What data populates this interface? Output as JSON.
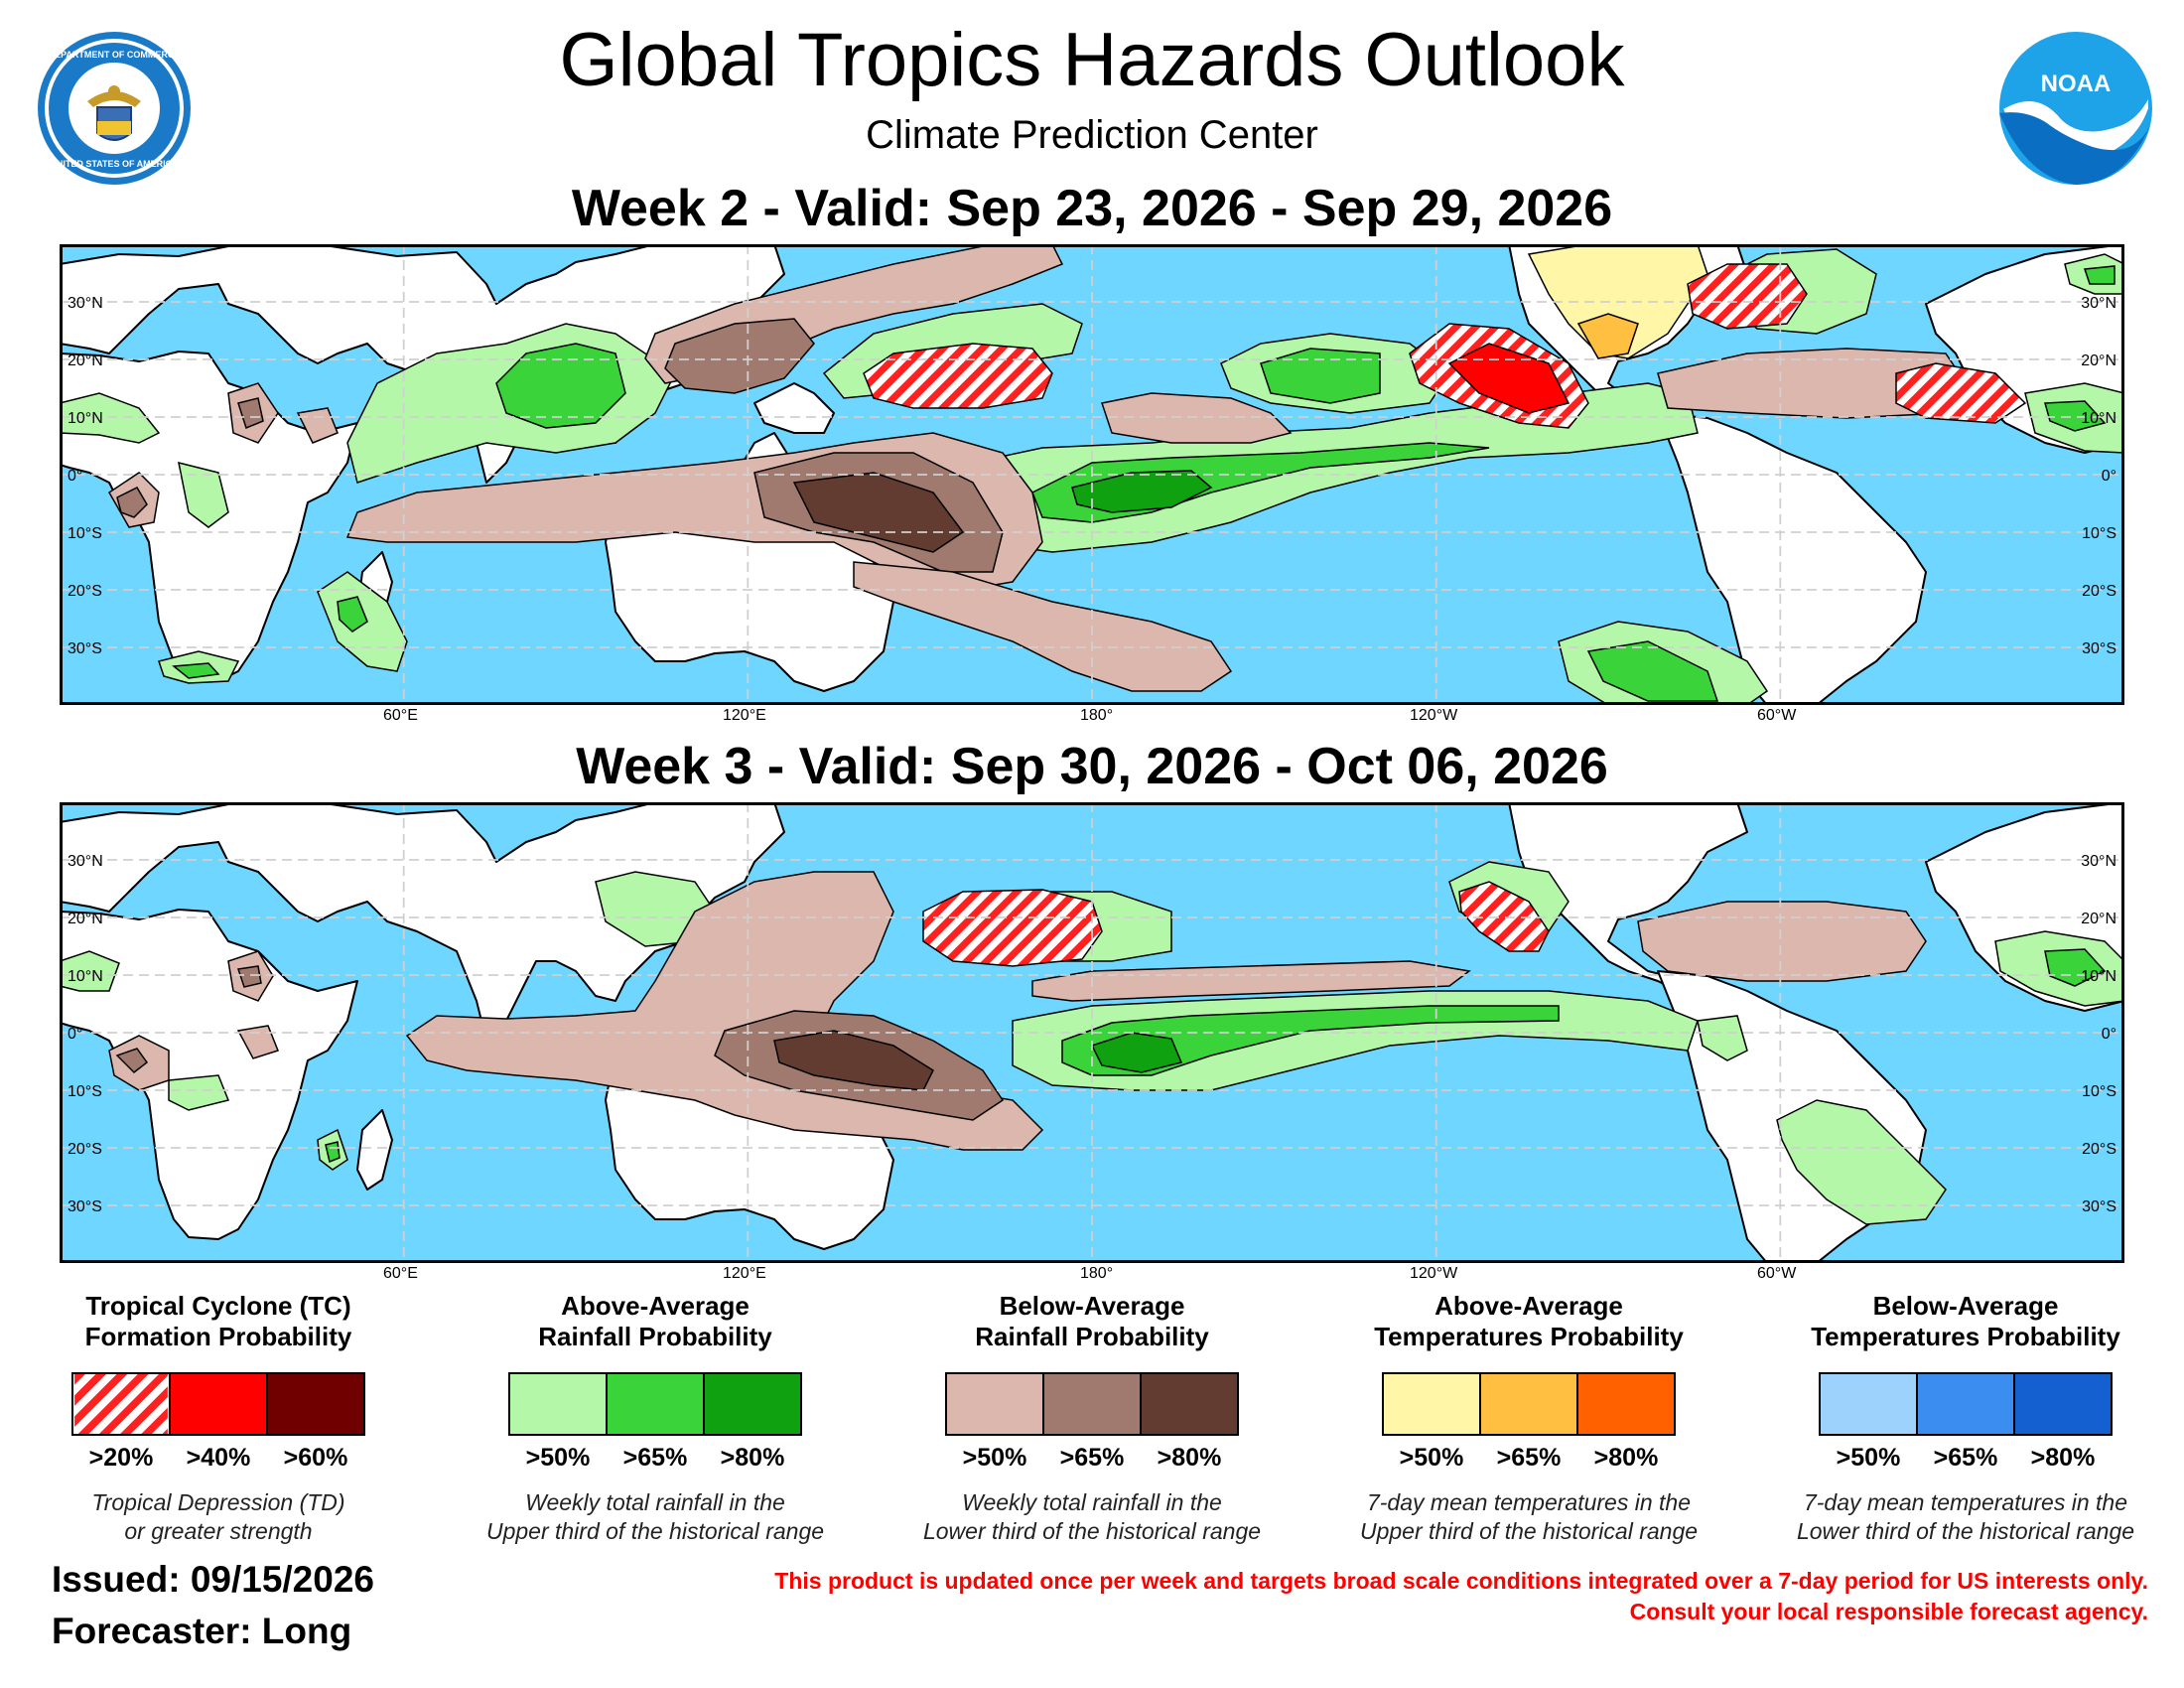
{
  "title": "Global Tropics Hazards Outlook",
  "subtitle": "Climate Prediction Center",
  "week2": {
    "title": "Week 2 - Valid: Sep 23, 2026 - Sep 29, 2026"
  },
  "week3": {
    "title": "Week 3 - Valid: Sep 30, 2026 - Oct 06, 2026"
  },
  "map_axes": {
    "lon_labels": [
      "60°E",
      "120°E",
      "180°",
      "120°W",
      "60°W"
    ],
    "lat_labels": [
      "30°N",
      "20°N",
      "10°N",
      "0°",
      "10°S",
      "20°S",
      "30°S"
    ],
    "lon_range": [
      "0°",
      "360°"
    ],
    "lat_range": [
      "40°S",
      "40°N"
    ]
  },
  "colors": {
    "ocean": "#6fd6ff",
    "land": "#ffffff",
    "tc_20": "#ff2020",
    "tc_40": "#ff0000",
    "tc_60": "#700000",
    "wet_50": "#b4f7a8",
    "wet_65": "#3ad43a",
    "wet_80": "#0fa10f",
    "dry_50": "#dcb7ad",
    "dry_65": "#a07a6e",
    "dry_80": "#623c30",
    "warm_50": "#fff6a8",
    "warm_65": "#ffbf40",
    "warm_80": "#ff6000",
    "cold_50": "#9cd2fb",
    "cold_65": "#3c8df0",
    "cold_80": "#1560d0"
  },
  "legend": {
    "tc": {
      "title_line1": "Tropical Cyclone (TC)",
      "title_line2": "Formation Probability",
      "labels": [
        ">20%",
        ">40%",
        ">60%"
      ],
      "note_line1": "Tropical Depression (TD)",
      "note_line2": "or greater strength"
    },
    "wet": {
      "title_line1": "Above-Average",
      "title_line2": "Rainfall Probability",
      "labels": [
        ">50%",
        ">65%",
        ">80%"
      ],
      "note_line1": "Weekly total rainfall in the",
      "note_line2": "Upper third of the historical range"
    },
    "dry": {
      "title_line1": "Below-Average",
      "title_line2": "Rainfall Probability",
      "labels": [
        ">50%",
        ">65%",
        ">80%"
      ],
      "note_line1": "Weekly total rainfall in the",
      "note_line2": "Lower third of the historical range"
    },
    "warm": {
      "title_line1": "Above-Average",
      "title_line2": "Temperatures Probability",
      "labels": [
        ">50%",
        ">65%",
        ">80%"
      ],
      "note_line1": "7-day mean temperatures in the",
      "note_line2": "Upper third of the historical range"
    },
    "cold": {
      "title_line1": "Below-Average",
      "title_line2": "Temperatures Probability",
      "labels": [
        ">50%",
        ">65%",
        ">80%"
      ],
      "note_line1": "7-day mean temperatures in the",
      "note_line2": "Lower third of the historical range"
    }
  },
  "issued": "Issued: 09/15/2026",
  "forecaster": "Forecaster: Long",
  "disclaimer_line1": "This product is updated once per week and targets broad scale conditions integrated over a 7-day period for US interests only.",
  "disclaimer_line2": "Consult your local responsible forecast agency.",
  "logo_doc_top": "DEPARTMENT OF COMMERCE",
  "logo_doc_bottom": "UNITED STATES OF AMERICA",
  "logo_noaa": "NOAA"
}
